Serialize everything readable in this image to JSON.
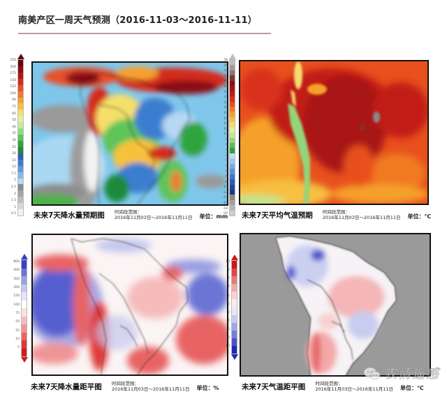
{
  "header": {
    "title": "南美产区一周天气预测（2016-11-03～2016-11-11）"
  },
  "panels": [
    {
      "id": "precip-forecast",
      "caption": "未来7天降水量预期图",
      "period_label": "时间段范围：",
      "period_value": "2016年11月03日～2016年11月11日",
      "unit": "单位：mm"
    },
    {
      "id": "temp-forecast",
      "caption": "未来7天平均气温预期",
      "period_label": "时间段范围：",
      "period_value": "2016年11月03日～2016年11月11日",
      "unit": "单位：℃"
    },
    {
      "id": "precip-anomaly",
      "caption": "未来7天降水量距平图",
      "period_label": "时间段范围：",
      "period_value": "2016年11月03日～2016年11月11日",
      "unit": "单位：%"
    },
    {
      "id": "temp-anomaly",
      "caption": "未来7天气温距平图",
      "period_label": "时间段范围：",
      "period_value": "2016年11月03日～2016年11月11日",
      "unit": "单位：℃"
    }
  ],
  "watermark": {
    "text": "农情遥感"
  },
  "chart_data": [
    {
      "type": "heatmap",
      "title": "未来7天降水量预期图",
      "region": "South America",
      "period": "2016-11-03 to 2016-11-11",
      "unit": "mm",
      "colorbar_ticks": [
        "250",
        "200",
        "175",
        "150",
        "125",
        "100",
        "90",
        "75",
        "60",
        "50",
        "40",
        "35",
        "30",
        "25",
        "20",
        "15",
        "10",
        "7.5",
        "5",
        "2.5",
        "2",
        "1.5",
        "1",
        "0.5"
      ],
      "colorbar_colors": [
        "#5a0a0a",
        "#8b0f12",
        "#b3161a",
        "#d42a1e",
        "#e8502a",
        "#f07a2e",
        "#f5a030",
        "#f7c23a",
        "#f5df6a",
        "#e8eea0",
        "#c2eb9a",
        "#92dc7a",
        "#5fc45a",
        "#2fa43c",
        "#1e8a3a",
        "#2a62b8",
        "#3a7ed0",
        "#5b9be0",
        "#86b9ea",
        "#b6d8f4",
        "#8c8c8c",
        "#a4a4a4",
        "#bdbdbd",
        "#d8d8d8",
        "#f2f2f2"
      ],
      "description": "Heavy rain (dark red/red) over northwestern South America (Colombia/Venezuela/Ecuador) and the equatorial Atlantic north of Brazil; moderate rain (yellow/green) over the Amazon basin and central Brazil; drier (grey/white) along Chilean/Peruvian coast and southeastern Pacific."
    },
    {
      "type": "heatmap",
      "title": "未来7天平均气温预期",
      "region": "South America",
      "period": "2016-11-03 to 2016-11-11",
      "unit": "°C",
      "colorbar_ticks": [
        "38",
        "36",
        "34",
        "32",
        "30",
        "28",
        "26",
        "24",
        "22",
        "20",
        "18",
        "16",
        "14",
        "12",
        "10",
        "8",
        "6",
        "4",
        "2",
        "0",
        "-2",
        "-4",
        "-6",
        "-8",
        "-10",
        "-12",
        "-14",
        "-16",
        "-18",
        "-20"
      ],
      "colorbar_colors": [
        "#bdbdbd",
        "#a89a98",
        "#8f7470",
        "#7a3a34",
        "#8c0e10",
        "#a81414",
        "#c21c18",
        "#d8301c",
        "#e8501e",
        "#f07a22",
        "#f5a02a",
        "#f7c040",
        "#f5dc70",
        "#e4ef9c",
        "#bfe690",
        "#94d47a",
        "#5ebc5a",
        "#32a040",
        "#bfe0f4",
        "#9cc8ec",
        "#7aaee2",
        "#5a92d6",
        "#3f78c8",
        "#2c5fb4",
        "#1f4a9c",
        "#183a82",
        "#8a8a8a",
        "#a0a0a0",
        "#b6b6b6",
        "#cfcfcf"
      ],
      "description": "Warmest (dark red, 26-30°C) over most of tropical South America and interior Brazil; cooler (green) along the Andes; orange/yellow (16-22°C) over the southern Pacific/Atlantic."
    },
    {
      "type": "heatmap",
      "title": "未来7天降水量距平图",
      "region": "South America",
      "period": "2016-11-03 to 2016-11-11",
      "unit": "%",
      "colorbar_ticks": [
        "800",
        "400",
        "300",
        "200",
        "150",
        "100",
        "75",
        "50",
        "25",
        "10",
        "5"
      ],
      "colorbar_colors": [
        "#3a40c8",
        "#6a74d6",
        "#9aa0e2",
        "#c4c8ee",
        "#e4e6f6",
        "#ffffff",
        "#fbe0e0",
        "#f6bcbc",
        "#f09494",
        "#e86464",
        "#e03838",
        "#d01e1e"
      ],
      "description": "Strong positive anomaly (blue) over southeastern Pacific west of Peru/Chile and off northeastern Brazil coast; negative anomaly (red) along the Andes/Chile coast, northeastern Brazil and southern Brazil/Uruguay; near-normal (white) across much of the Amazon."
    },
    {
      "type": "heatmap",
      "title": "未来7天气温距平图",
      "region": "South America",
      "period": "2016-11-03 to 2016-11-11",
      "unit": "°C",
      "colorbar_ticks": [
        "10",
        "8",
        "6",
        "4",
        "2",
        "0",
        "-2",
        "-4",
        "-6",
        "-8",
        "-10"
      ],
      "colorbar_colors": [
        "#d01818",
        "#e04646",
        "#ec7878",
        "#f4a8a8",
        "#f9d0d0",
        "#fbeaea",
        "#e8e8f8",
        "#c8ccf0",
        "#a0a8e6",
        "#7680da",
        "#4a52cc",
        "#2028b8"
      ],
      "description": "Land-only map (ocean masked grey). Slightly warm anomaly (light red) across central/northeastern Brazil and Argentina/Chile; slightly cool anomaly (light blue) over Colombia/Venezuela/Peru and southeastern Brazil."
    }
  ]
}
